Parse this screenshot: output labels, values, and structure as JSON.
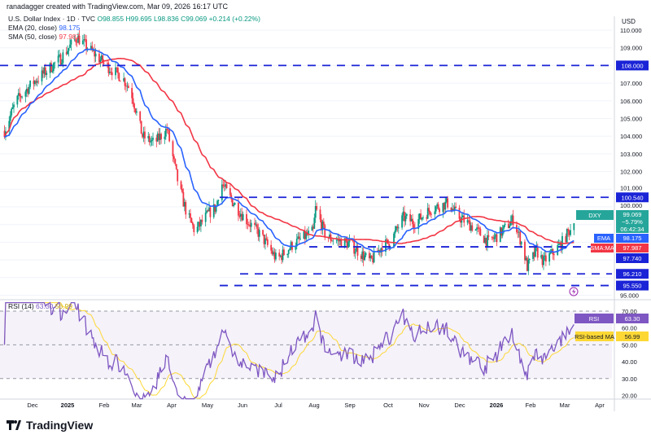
{
  "credit": "ranadagger created with TradingView.com, Mar 09, 2026 16:17 UTC",
  "legend": {
    "symbol": "U.S. Dollar Index · 1D · TVC",
    "open": "O98.855",
    "high": "H99.695",
    "low": "L98.836",
    "close": "C99.069",
    "change": "+0.214 (+0.22%)",
    "ema_label": "EMA (20, close)",
    "ema_value": "98.175",
    "sma_label": "SMA (50, close)",
    "sma_value": "97.987"
  },
  "rsi_legend": {
    "label": "RSI (14)",
    "value": "63.30",
    "ma_value": "56.99"
  },
  "currency": "USD",
  "logo": "TradingView",
  "colors": {
    "up": "#089981",
    "down": "#f23645",
    "ema": "#2962ff",
    "sma": "#f23645",
    "level": "#1a23d6",
    "rsi": "#7e57c2",
    "rsi_ma": "#fdd835"
  },
  "price_axis": [
    "110.000",
    "109.000",
    "108.000",
    "107.000",
    "106.000",
    "105.000",
    "104.000",
    "103.000",
    "102.000",
    "101.000",
    "100.000",
    "95.000"
  ],
  "rsi_axis": [
    "70.00",
    "60.00",
    "50.00",
    "40.00",
    "30.00",
    "20.00"
  ],
  "time_axis": [
    "Dec",
    "2025",
    "Feb",
    "Mar",
    "Apr",
    "May",
    "Jun",
    "Jul",
    "Aug",
    "Sep",
    "Oct",
    "Nov",
    "Dec",
    "2026",
    "Feb",
    "Mar",
    "Apr"
  ],
  "levels": [
    "108.000",
    "100.540",
    "97.740",
    "96.210",
    "95.550"
  ],
  "tags": {
    "dxy": "DXY",
    "dxy_price": "99.069",
    "dxy_change": "−5.79%",
    "countdown": "06:42:34",
    "ema": "EMA",
    "ema_value": "98.175",
    "sma": "SMA:MA",
    "sma_value": "97.987",
    "rsi": "RSI",
    "rsi_value": "63.30",
    "rsi_ma": "RSI-based MA",
    "rsi_ma_value": "56.99"
  },
  "chart_data": {
    "type": "candlestick",
    "title": "U.S. Dollar Index · 1D · TVC",
    "price_range": [
      94.5,
      110.8
    ],
    "rsi_range": [
      18,
      75
    ],
    "key_closes": {
      "dates": [
        "2024-11-07",
        "2024-11-17",
        "2024-12-01",
        "2024-12-25",
        "2025-01-08",
        "2025-01-19",
        "2025-02-02",
        "2025-02-16",
        "2025-02-23",
        "2025-03-05",
        "2025-03-15",
        "2025-03-26",
        "2025-04-05",
        "2025-04-12",
        "2025-04-19",
        "2025-04-30",
        "2025-05-07",
        "2025-05-11",
        "2025-05-20",
        "2025-05-31",
        "2025-06-14",
        "2025-06-28",
        "2025-07-12",
        "2025-07-29",
        "2025-07-31",
        "2025-08-09",
        "2025-08-29",
        "2025-09-16",
        "2025-09-26",
        "2025-10-03",
        "2025-10-14",
        "2025-10-24",
        "2025-11-07",
        "2025-11-21",
        "2025-12-01",
        "2025-12-12",
        "2025-12-26",
        "2026-01-05",
        "2026-01-16",
        "2026-01-23",
        "2026-01-28",
        "2026-02-05",
        "2026-02-11",
        "2026-02-19",
        "2026-02-26",
        "2026-03-09"
      ],
      "values": [
        104.3,
        106.0,
        107.0,
        108.4,
        109.6,
        108.9,
        108.0,
        107.3,
        106.6,
        104.0,
        103.6,
        104.4,
        101.2,
        99.6,
        98.6,
        99.6,
        100.0,
        101.4,
        100.4,
        99.4,
        98.4,
        97.0,
        97.9,
        98.6,
        99.9,
        98.3,
        97.9,
        96.9,
        97.8,
        98.0,
        99.4,
        99.1,
        99.9,
        100.2,
        99.4,
        98.9,
        98.0,
        98.5,
        99.3,
        98.0,
        96.6,
        97.5,
        96.9,
        97.4,
        97.9,
        99.07
      ]
    },
    "horizontal_levels": [
      108.0,
      100.54,
      97.74,
      96.21,
      95.55
    ],
    "indicators": {
      "ema_20": 98.175,
      "sma_50": 97.987,
      "rsi_14": 63.3,
      "rsi_ma": 56.99
    }
  }
}
